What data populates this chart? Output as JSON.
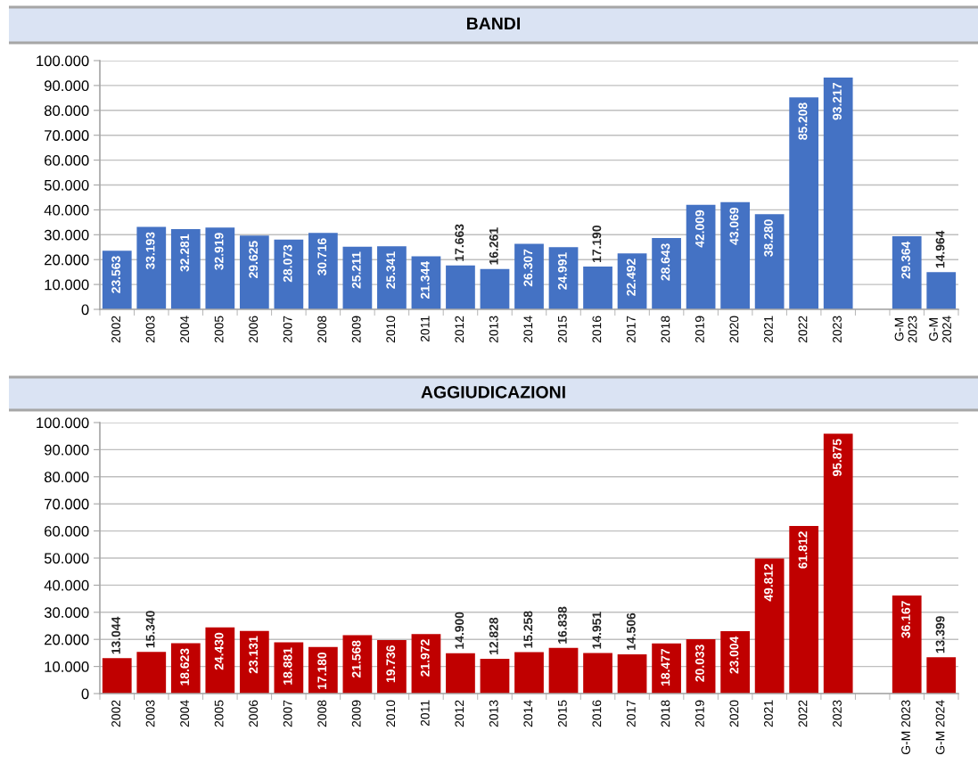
{
  "chart_data": [
    {
      "type": "bar",
      "title": "BANDI",
      "categories": [
        "2002",
        "2003",
        "2004",
        "2005",
        "2006",
        "2007",
        "2008",
        "2009",
        "2010",
        "2011",
        "2012",
        "2013",
        "2014",
        "2015",
        "2016",
        "2017",
        "2018",
        "2019",
        "2020",
        "2021",
        "2022",
        "2023",
        null,
        "G-M\n2023",
        "G-M\n2024"
      ],
      "values": [
        23563,
        33193,
        32281,
        32919,
        29625,
        28073,
        30716,
        25211,
        25341,
        21344,
        17663,
        16261,
        26307,
        24991,
        17190,
        22492,
        28643,
        42009,
        43069,
        38280,
        85208,
        93217,
        null,
        29364,
        14964
      ],
      "value_labels": [
        "23.563",
        "33.193",
        "32.281",
        "32.919",
        "29.625",
        "28.073",
        "30.716",
        "25.211",
        "25.341",
        "21.344",
        "17.663",
        "16.261",
        "26.307",
        "24.991",
        "17.190",
        "22.492",
        "28.643",
        "42.009",
        "43.069",
        "38.280",
        "85.208",
        "93.217",
        null,
        "29.364",
        "14.964"
      ],
      "color": "#4472c4",
      "ylim": [
        0,
        100000
      ],
      "yticks": [
        0,
        {
          "value": 10000,
          "label": "10.000"
        },
        {
          "value": 20000,
          "label": "20.000"
        },
        {
          "value": 30000,
          "label": "30.000"
        },
        {
          "value": 40000,
          "label": "40.000"
        },
        {
          "value": 50000,
          "label": "50.000"
        },
        {
          "value": 60000,
          "label": "60.000"
        },
        {
          "value": 70000,
          "label": "70.000"
        },
        {
          "value": 80000,
          "label": "80.000"
        },
        {
          "value": 90000,
          "label": "90.000"
        },
        {
          "value": 100000,
          "label": "100.000"
        }
      ],
      "grid": "y"
    },
    {
      "type": "bar",
      "title": "AGGIUDICAZIONI",
      "categories": [
        "2002",
        "2003",
        "2004",
        "2005",
        "2006",
        "2007",
        "2008",
        "2009",
        "2010",
        "2011",
        "2012",
        "2013",
        "2014",
        "2015",
        "2016",
        "2017",
        "2018",
        "2019",
        "2020",
        "2021",
        "2022",
        "2023",
        null,
        "G-M 2023",
        "G-M 2024"
      ],
      "values": [
        13044,
        15340,
        18623,
        24430,
        23131,
        18881,
        17180,
        21568,
        19736,
        21972,
        14900,
        12828,
        15258,
        16838,
        14951,
        14506,
        18477,
        20033,
        23004,
        49812,
        61812,
        95875,
        null,
        36167,
        13399
      ],
      "value_labels": [
        "13.044",
        "15.340",
        "18.623",
        "24.430",
        "23.131",
        "18.881",
        "17.180",
        "21.568",
        "19.736",
        "21.972",
        "14.900",
        "12.828",
        "15.258",
        "16.838",
        "14.951",
        "14.506",
        "18.477",
        "20.033",
        "23.004",
        "49.812",
        "61.812",
        "95.875",
        null,
        "36.167",
        "13.399"
      ],
      "color": "#c00000",
      "ylim": [
        0,
        100000
      ],
      "yticks": [
        0,
        {
          "value": 10000,
          "label": "10.000"
        },
        {
          "value": 20000,
          "label": "20.000"
        },
        {
          "value": 30000,
          "label": "30.000"
        },
        {
          "value": 40000,
          "label": "40.000"
        },
        {
          "value": 50000,
          "label": "50.000"
        },
        {
          "value": 60000,
          "label": "60.000"
        },
        {
          "value": 70000,
          "label": "70.000"
        },
        {
          "value": 80000,
          "label": "80.000"
        },
        {
          "value": 90000,
          "label": "90.000"
        },
        {
          "value": 100000,
          "label": "100.000"
        }
      ],
      "grid": "y"
    }
  ]
}
